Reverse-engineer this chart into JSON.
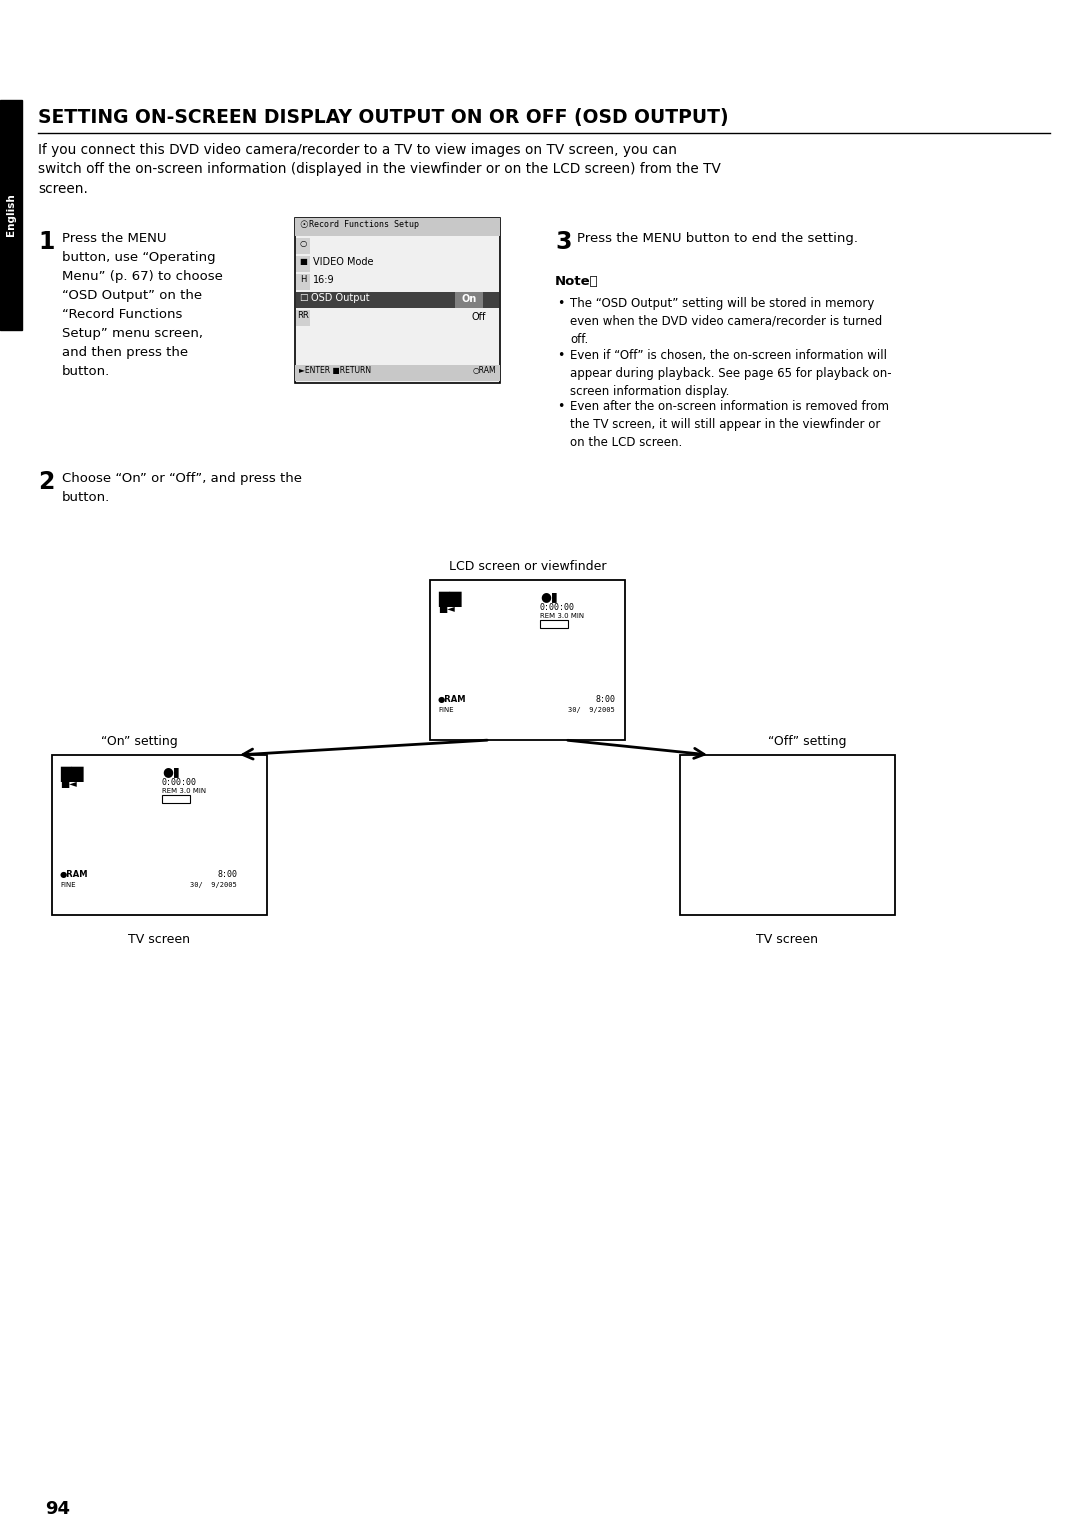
{
  "title": "SETTING ON-SCREEN DISPLAY OUTPUT ON OR OFF (OSD OUTPUT)",
  "intro_text": "If you connect this DVD video camera/recorder to a TV to view images on TV screen, you can\nswitch off the on-screen information (displayed in the viewfinder or on the LCD screen) from the TV\nscreen.",
  "step1_num": "1",
  "step1_text": "Press the MENU\nbutton, use “Operating\nMenu” (p. 67) to choose\n“OSD Output” on the\n“Record Functions\nSetup” menu screen,\nand then press the\nbutton.",
  "step2_num": "2",
  "step2_text": "Choose “On” or “Off”, and press the\nbutton.",
  "step3_num": "3",
  "step3_text": "Press the MENU button to end the setting.",
  "note_title": "Note：",
  "note_bullets": [
    "The “OSD Output” setting will be stored in memory\neven when the DVD video camera/recorder is turned\noff.",
    "Even if “Off” is chosen, the on-screen information will\nappear during playback. See page 65 for playback on-\nscreen information display.",
    "Even after the on-screen information is removed from\nthe TV screen, it will still appear in the viewfinder or\non the LCD screen."
  ],
  "sidebar_text": "English",
  "sidebar_bg": "#000000",
  "sidebar_text_color": "#ffffff",
  "page_number": "94",
  "bg_color": "#ffffff",
  "text_color": "#000000",
  "lcd_label": "LCD screen or viewfinder",
  "on_setting_label": "“On” setting",
  "off_setting_label": "“Off” setting",
  "tv_screen_label": "TV screen",
  "menu_title": "Record Functions Setup",
  "menu_items": [
    "VIDEO Mode",
    "16:9",
    "OSD Output",
    ""
  ],
  "menu_on": "On",
  "menu_off": "Off",
  "menu_bottom": "ENTER  RETURN       RAM"
}
